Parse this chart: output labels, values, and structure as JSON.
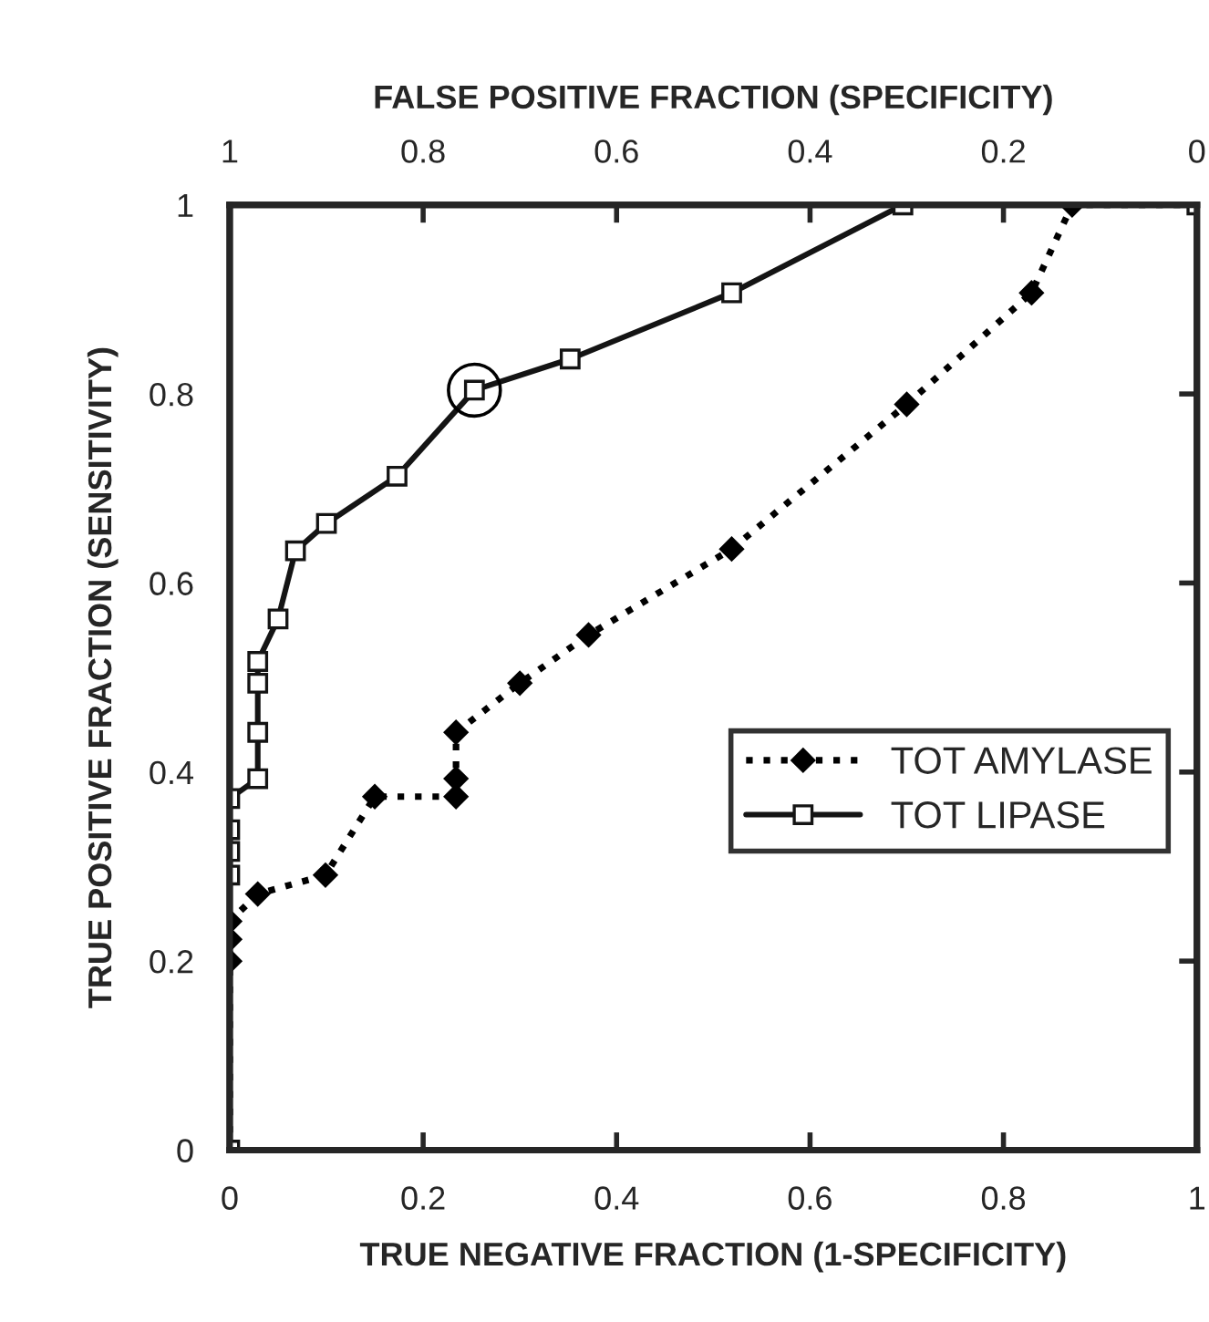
{
  "chart_data": {
    "type": "line",
    "xlabel": "TRUE NEGATIVE FRACTION (1-SPECIFICITY)",
    "ylabel": "TRUE POSITIVE FRACTION (SENSITIVITY)",
    "x2label": "FALSE POSITIVE FRACTION (SPECIFICITY)",
    "xlim": [
      0,
      1
    ],
    "xticks": [
      0,
      0.2,
      0.4,
      0.6,
      0.8,
      1
    ],
    "x2lim": [
      1,
      0
    ],
    "x2ticks": [
      1,
      0.8,
      0.6,
      0.4,
      0.2,
      0
    ],
    "ylim": [
      0,
      1
    ],
    "yticks": [
      0,
      0.2,
      0.4,
      0.6,
      0.8,
      1
    ],
    "grid": false,
    "legend": "right",
    "series": [
      {
        "name": "TOT AMYLASE",
        "color": "#000000",
        "marker": "diamond",
        "line_style": "dotted",
        "x": [
          0,
          0,
          0.0,
          0.0,
          0.029,
          0.099,
          0.15,
          0.234,
          0.234,
          0.234,
          0.3,
          0.371,
          0.519,
          0.7,
          0.829,
          0.871,
          1
        ],
        "values": [
          0,
          0.2,
          0.223,
          0.242,
          0.271,
          0.291,
          0.374,
          0.374,
          0.393,
          0.442,
          0.494,
          0.545,
          0.636,
          0.789,
          0.907,
          1.0,
          1.0
        ]
      },
      {
        "name": "TOT LIPASE",
        "color": "#141414",
        "marker": "square",
        "line_style": "solid",
        "x": [
          0,
          0,
          0,
          0,
          0,
          0.029,
          0.029,
          0.029,
          0.029,
          0.05,
          0.068,
          0.1,
          0.173,
          0.253,
          0.352,
          0.519,
          0.696,
          1
        ],
        "values": [
          0,
          0.291,
          0.316,
          0.339,
          0.372,
          0.393,
          0.442,
          0.494,
          0.517,
          0.562,
          0.634,
          0.663,
          0.713,
          0.804,
          0.837,
          0.907,
          1.0,
          1.0
        ]
      },
      {
        "type": "scatter",
        "color": "#000000",
        "marker": "circle",
        "x": [
          0.253
        ],
        "values": [
          0.804
        ]
      }
    ]
  }
}
